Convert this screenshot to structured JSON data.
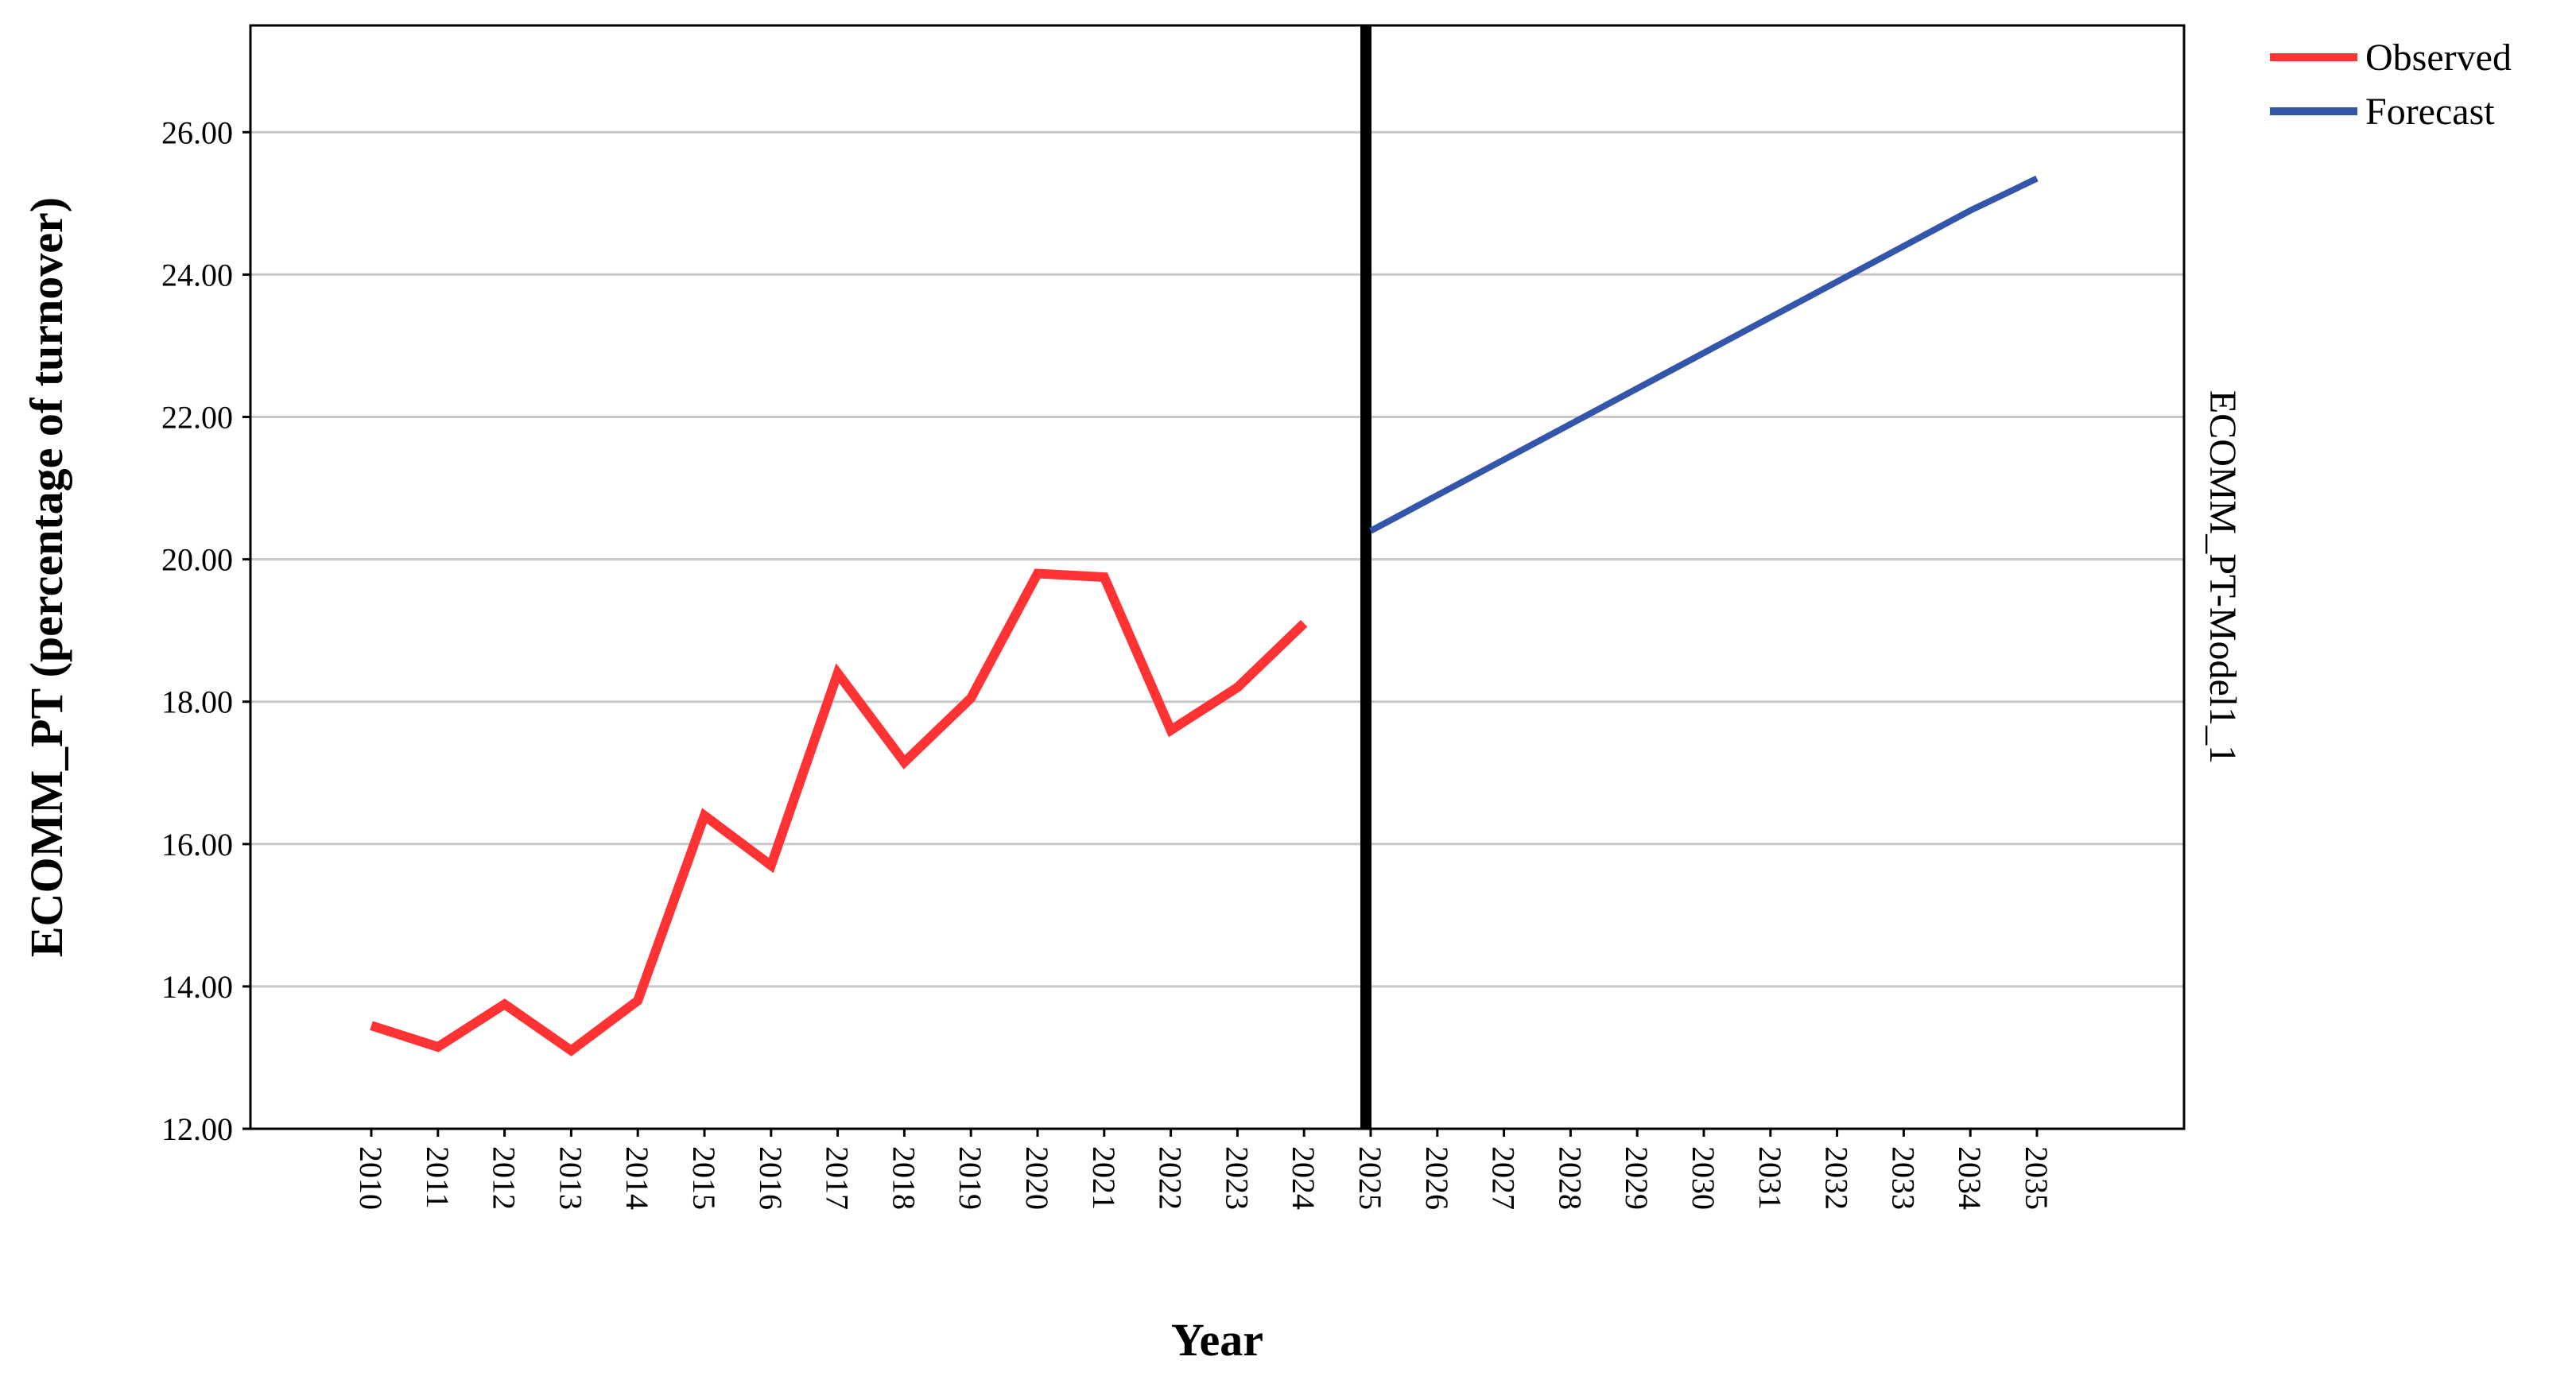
{
  "chart_data": {
    "type": "line",
    "xlabel": "Year",
    "ylabel": "ECOMM_PT (percentage of turnover)",
    "side_label": "ECOMM_PT-Model1_1",
    "ylim": [
      12,
      27.5
    ],
    "yticks": [
      "12.00",
      "14.00",
      "16.00",
      "18.00",
      "20.00",
      "22.00",
      "24.00",
      "26.00"
    ],
    "ytick_values": [
      12,
      14,
      16,
      18,
      20,
      22,
      24,
      26
    ],
    "categories": [
      "2010",
      "2011",
      "2012",
      "2013",
      "2014",
      "2015",
      "2016",
      "2017",
      "2018",
      "2019",
      "2020",
      "2021",
      "2022",
      "2023",
      "2024",
      "2025",
      "2026",
      "2027",
      "2028",
      "2029",
      "2030",
      "2031",
      "2032",
      "2033",
      "2034",
      "2035"
    ],
    "grid": "horizontal",
    "legend_position": "top-right",
    "reference_line_year": "2025",
    "series": [
      {
        "name": "Observed",
        "color": "#ff3333",
        "x": [
          "2010",
          "2011",
          "2012",
          "2013",
          "2014",
          "2015",
          "2016",
          "2017",
          "2018",
          "2019",
          "2020",
          "2021",
          "2022",
          "2023",
          "2024"
        ],
        "values": [
          13.45,
          13.15,
          13.75,
          13.1,
          13.8,
          16.4,
          15.7,
          18.4,
          17.15,
          18.05,
          19.8,
          19.75,
          17.6,
          18.2,
          19.1
        ]
      },
      {
        "name": "Forecast",
        "color": "#3355aa",
        "x": [
          "2025",
          "2026",
          "2027",
          "2028",
          "2029",
          "2030",
          "2031",
          "2032",
          "2033",
          "2034",
          "2035"
        ],
        "values": [
          20.4,
          20.9,
          21.4,
          21.9,
          22.4,
          22.9,
          23.4,
          23.9,
          24.4,
          24.9,
          25.35
        ]
      }
    ]
  }
}
